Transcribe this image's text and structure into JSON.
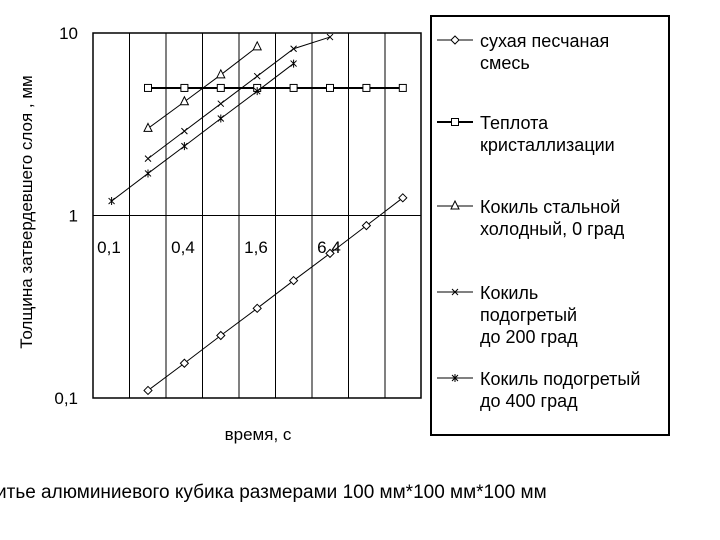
{
  "chart_data": {
    "type": "line",
    "ylabel": "Толщина затвердевшего слоя , мм",
    "xlabel": "время, с",
    "y_scale": "log",
    "ylim": [
      0.1,
      10
    ],
    "y_ticks": [
      "0,1",
      "1",
      "10"
    ],
    "x_tick_labels": [
      "0,1",
      "0,4",
      "1,6",
      "6,4"
    ],
    "grid": true,
    "legend_position": "right",
    "x": [
      0.2,
      0.4,
      0.8,
      1.6,
      3.2,
      6.4,
      12.8,
      25.6
    ],
    "series": [
      {
        "name": "сухая песчаная смесь",
        "marker": "diamond",
        "x": [
          0.2,
          0.4,
          0.8,
          1.6,
          3.2,
          6.4,
          12.8,
          25.6
        ],
        "values": [
          0.11,
          0.155,
          0.22,
          0.31,
          0.44,
          0.62,
          0.88,
          1.25
        ]
      },
      {
        "name": "Теплота кристаллизации",
        "marker": "square",
        "x": [
          0.2,
          0.4,
          0.8,
          1.6,
          3.2,
          6.4,
          12.8,
          25.6
        ],
        "values": [
          5,
          5,
          5,
          5,
          5,
          5,
          5,
          5
        ]
      },
      {
        "name": "Кокиль стальной холодный, 0 град",
        "marker": "triangle",
        "x": [
          0.2,
          0.4,
          0.8,
          1.6
        ],
        "values": [
          3.0,
          4.2,
          5.9,
          8.4
        ]
      },
      {
        "name": "Кокиль подогретый до 200 град",
        "marker": "x",
        "x": [
          0.2,
          0.4,
          0.8,
          1.6,
          3.2,
          6.4
        ],
        "values": [
          2.05,
          2.9,
          4.1,
          5.8,
          8.2,
          9.5
        ]
      },
      {
        "name": "Кокиль подогретый до 400 град",
        "marker": "star",
        "x": [
          0.1,
          0.2,
          0.4,
          0.8,
          1.6,
          3.2
        ],
        "values": [
          1.2,
          1.7,
          2.4,
          3.4,
          4.8,
          6.8
        ]
      }
    ]
  },
  "legend": {
    "items": [
      {
        "lines": [
          "сухая песчаная",
          "смесь"
        ],
        "marker": "diamond"
      },
      {
        "lines": [
          "Теплота",
          "кристаллизации"
        ],
        "marker": "square"
      },
      {
        "lines": [
          "Кокиль стальной",
          "холодный, 0 град"
        ],
        "marker": "triangle"
      },
      {
        "lines": [
          "Кокиль",
          "подогретый",
          "до 200 град"
        ],
        "marker": "x"
      },
      {
        "lines": [
          "Кокиль подогретый",
          "до 400 град"
        ],
        "marker": "star"
      }
    ]
  },
  "caption": "итье алюминиевого кубика размерами 100 мм*100 мм*100 мм"
}
